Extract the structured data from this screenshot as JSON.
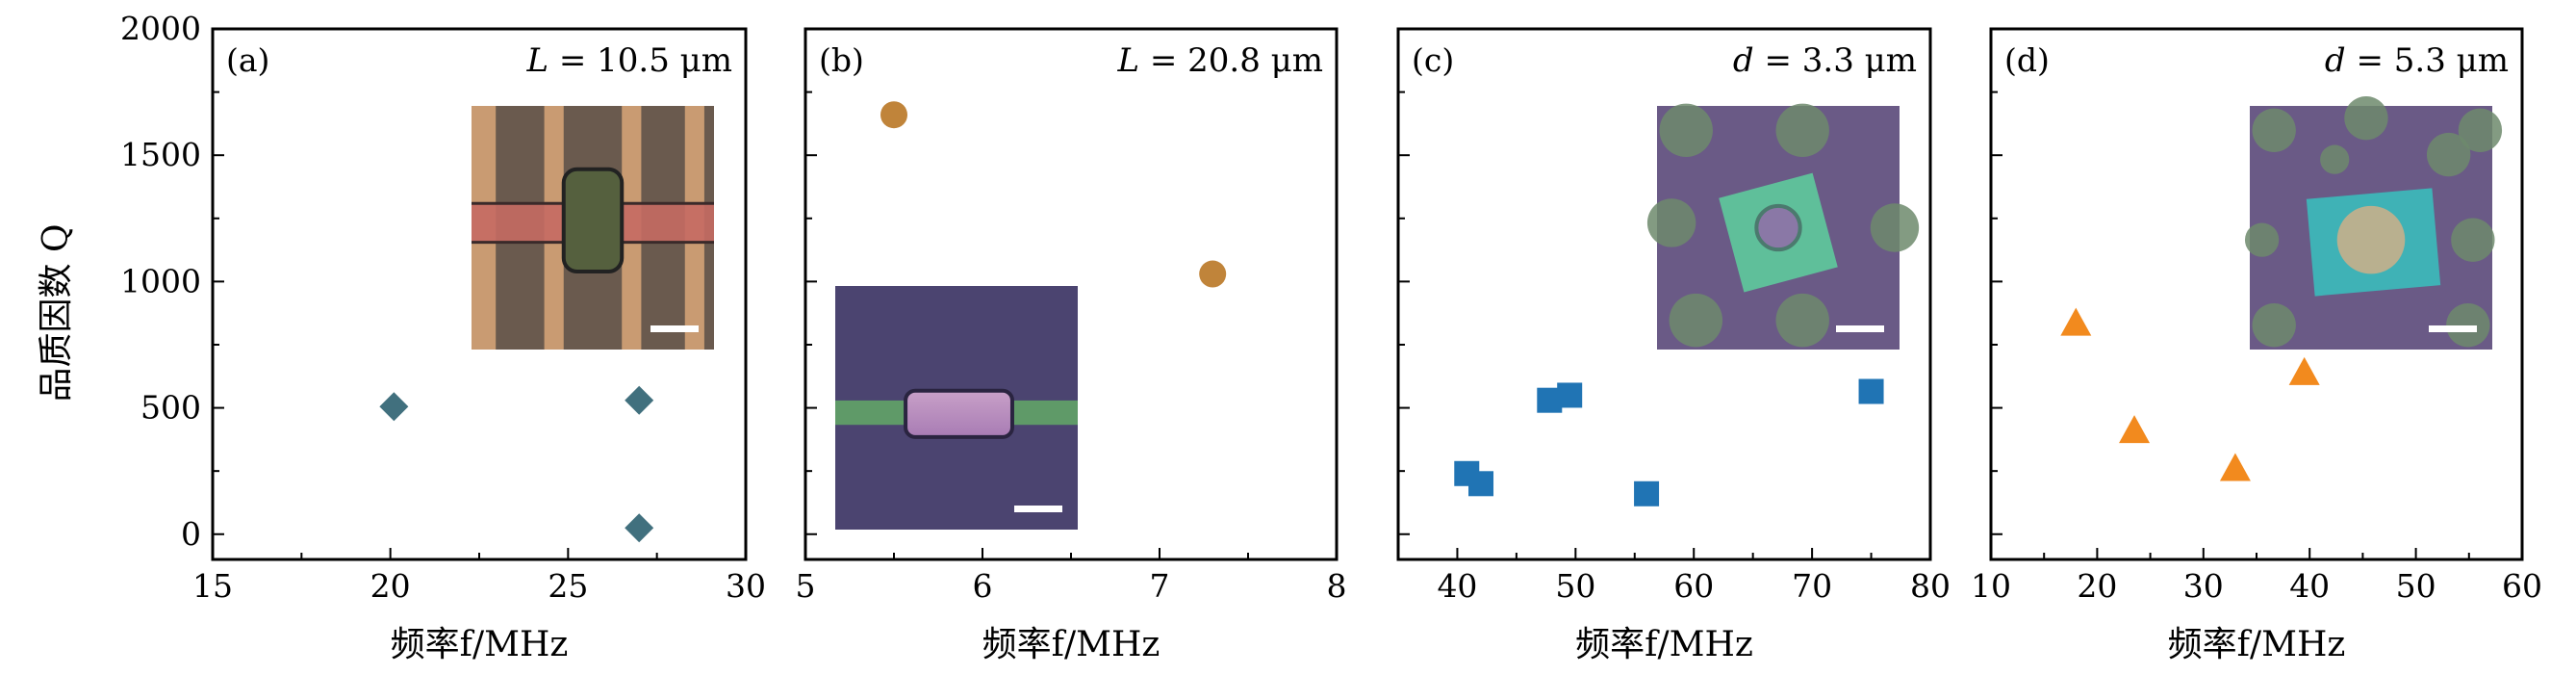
{
  "figure": {
    "ylabel": "品质因数 Q"
  },
  "chart_data": [
    {
      "type": "scatter",
      "panel": "(a)",
      "annotation": {
        "var": "L",
        "text": " = 10.5 μm"
      },
      "xlabel": "频率f/MHz",
      "xlim": [
        15,
        30
      ],
      "xticks": [
        "15",
        "20",
        "25",
        "30"
      ],
      "ylim": [
        -100,
        2000
      ],
      "yticks": [
        "0",
        "500",
        "1000",
        "1500",
        "2000"
      ],
      "marker": "diamond",
      "color": "#41707e",
      "points": [
        {
          "x": 20.1,
          "y": 505
        },
        {
          "x": 27.0,
          "y": 530
        },
        {
          "x": 27.0,
          "y": 25
        }
      ],
      "inset": {
        "position": "upper-right",
        "kind": "micrograph-beam-on-electrodes"
      }
    },
    {
      "type": "scatter",
      "panel": "(b)",
      "annotation": {
        "var": "L",
        "text": " = 20.8 μm"
      },
      "xlabel": "频率f/MHz",
      "xlim": [
        5,
        8
      ],
      "xticks": [
        "5",
        "6",
        "7",
        "8"
      ],
      "ylim": [
        -100,
        2000
      ],
      "yticks": [],
      "marker": "circle",
      "color": "#c0843a",
      "points": [
        {
          "x": 5.5,
          "y": 1660
        },
        {
          "x": 7.3,
          "y": 1030
        }
      ],
      "inset": {
        "position": "lower-left",
        "kind": "micrograph-beam"
      }
    },
    {
      "type": "scatter",
      "panel": "(c)",
      "annotation": {
        "var": "d",
        "text": " = 3.3 μm"
      },
      "xlabel": "频率f/MHz",
      "xlim": [
        35,
        80
      ],
      "xticks": [
        "40",
        "50",
        "60",
        "70",
        "80"
      ],
      "ylim": [
        -100,
        2000
      ],
      "yticks": [],
      "marker": "square",
      "color": "#2074b4",
      "points": [
        {
          "x": 40.8,
          "y": 240
        },
        {
          "x": 42.0,
          "y": 200
        },
        {
          "x": 47.8,
          "y": 530
        },
        {
          "x": 49.5,
          "y": 550
        },
        {
          "x": 56.0,
          "y": 160
        },
        {
          "x": 75.0,
          "y": 565
        }
      ],
      "inset": {
        "position": "upper-right",
        "kind": "micrograph-drum-small"
      }
    },
    {
      "type": "scatter",
      "panel": "(d)",
      "annotation": {
        "var": "d",
        "text": " = 5.3 μm"
      },
      "xlabel": "频率f/MHz",
      "xlim": [
        10,
        60
      ],
      "xticks": [
        "10",
        "20",
        "30",
        "40",
        "50",
        "60"
      ],
      "ylim": [
        -100,
        2000
      ],
      "yticks": [],
      "marker": "triangle",
      "color": "#f28a1e",
      "points": [
        {
          "x": 18.0,
          "y": 835
        },
        {
          "x": 23.5,
          "y": 410
        },
        {
          "x": 33.0,
          "y": 260
        },
        {
          "x": 39.5,
          "y": 640
        }
      ],
      "inset": {
        "position": "upper-right",
        "kind": "micrograph-drum-large"
      }
    }
  ]
}
